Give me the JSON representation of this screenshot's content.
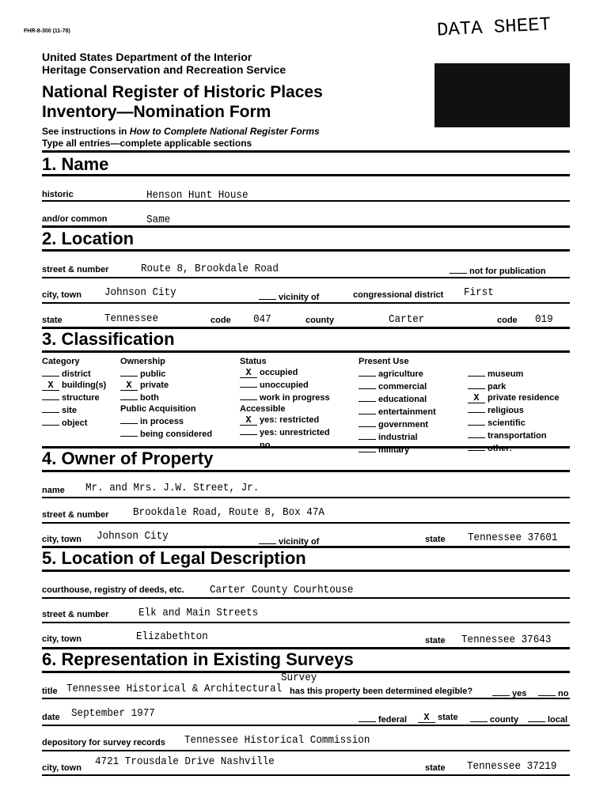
{
  "form_number": "FHR-8-300 (11-78)",
  "stamp": "DATA SHEET",
  "agency": [
    "United States Department of the Interior",
    "Heritage Conservation and Recreation Service"
  ],
  "title": [
    "National Register of Historic Places",
    "Inventory—Nomination Form"
  ],
  "instructions": {
    "prefix": "See instructions in ",
    "italic": "How to Complete National Register Forms",
    "line2": "Type all entries—complete applicable sections"
  },
  "s1": {
    "heading": "1. Name",
    "historic_label": "historic",
    "historic": "Henson Hunt House",
    "common_label": "and/or common",
    "common": "Same"
  },
  "s2": {
    "heading": "2. Location",
    "street_label": "street & number",
    "street": "Route 8, Brookdale Road",
    "not_pub": "not for publication",
    "city_label": "city, town",
    "city": "Johnson City",
    "vicinity": "vicinity of",
    "cong_label": "congressional district",
    "cong": "First",
    "state_label": "state",
    "state": "Tennessee",
    "code_label": "code",
    "state_code": "047",
    "county_label": "county",
    "county": "Carter",
    "county_code": "019"
  },
  "s3": {
    "heading": "3. Classification",
    "columns": [
      [
        {
          "h": "Category"
        },
        {
          "t": "district"
        },
        {
          "t": "building(s)",
          "x": true
        },
        {
          "t": "structure"
        },
        {
          "t": "site"
        },
        {
          "t": "object"
        }
      ],
      [
        {
          "h": "Ownership"
        },
        {
          "t": "public"
        },
        {
          "t": "private",
          "x": true
        },
        {
          "t": "both"
        },
        {
          "h": "Public Acquisition"
        },
        {
          "t": "in process"
        },
        {
          "t": "being considered"
        }
      ],
      [
        {
          "h": "Status"
        },
        {
          "t": "occupied",
          "x": true
        },
        {
          "t": "unoccupied"
        },
        {
          "t": "work in progress"
        },
        {
          "h": "Accessible"
        },
        {
          "t": "yes: restricted",
          "x": true
        },
        {
          "t": "yes: unrestricted"
        },
        {
          "t": "no"
        }
      ],
      [
        {
          "h": "Present Use"
        },
        {
          "t": "agriculture"
        },
        {
          "t": "commercial"
        },
        {
          "t": "educational"
        },
        {
          "t": "entertainment"
        },
        {
          "t": "government"
        },
        {
          "t": "industrial"
        },
        {
          "t": "military"
        }
      ],
      [
        {
          "h": " "
        },
        {
          "t": "museum"
        },
        {
          "t": "park"
        },
        {
          "t": "private residence",
          "x": true
        },
        {
          "t": "religious"
        },
        {
          "t": "scientific"
        },
        {
          "t": "transportation"
        },
        {
          "t": "other:"
        }
      ]
    ]
  },
  "s4": {
    "heading": "4. Owner of Property",
    "name_label": "name",
    "name": "Mr. and Mrs. J.W. Street, Jr.",
    "street_label": "street & number",
    "street": "Brookdale Road, Route 8, Box 47A",
    "city_label": "city, town",
    "city": "Johnson City",
    "vicinity": "vicinity of",
    "state_label": "state",
    "state": "Tennessee  37601"
  },
  "s5": {
    "heading": "5. Location of Legal Description",
    "court_label": "courthouse, registry of deeds, etc.",
    "court": "Carter County Courhtouse",
    "street_label": "street & number",
    "street": "Elk and Main Streets",
    "city_label": "city, town",
    "city": "Elizabethton",
    "state_label": "state",
    "state": "Tennessee  37643"
  },
  "s6": {
    "heading": "6. Representation in Existing Surveys",
    "title_label": "title",
    "title": "Tennessee Historical & Architectural",
    "title_cont": "Survey",
    "eligible": "has this property been determined elegible?",
    "yes": "yes",
    "no": "no",
    "date_label": "date",
    "date": "September 1977",
    "federal": "federal",
    "state_opt": "state",
    "county": "county",
    "local": "local",
    "dep_label": "depository for survey records",
    "dep": "Tennessee Historical Commission",
    "city_label": "city, town",
    "city": "4721 Trousdale Drive  Nashville",
    "state_label": "state",
    "state": "Tennessee  37219"
  }
}
